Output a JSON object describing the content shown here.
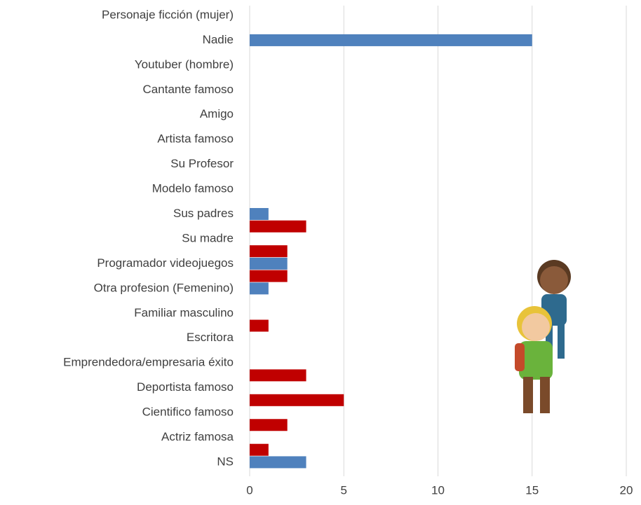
{
  "chart_data": {
    "type": "bar",
    "orientation": "horizontal",
    "categories": [
      "Personaje ficción (mujer)",
      "Nadie",
      "Youtuber (hombre)",
      "Cantante famoso",
      "Amigo ",
      "Artista famoso",
      "Su Profesor",
      "Modelo famoso",
      "Sus padres",
      "Su madre",
      "Programador videojuegos",
      "Otra profesion (Femenino)",
      "Familiar masculino",
      "Escritora",
      "Emprendedora/empresaria éxito",
      "Deportista famoso",
      "Cientifico famoso",
      "Actriz famosa",
      "NS"
    ],
    "series": [
      {
        "color": "#4f81bd",
        "values": [
          0,
          15,
          0,
          0,
          0,
          0,
          0,
          0,
          1,
          0,
          2,
          1,
          0,
          0,
          0,
          0,
          0,
          0,
          3
        ]
      },
      {
        "color": "#c00000",
        "values": [
          0,
          0,
          0,
          0,
          0,
          0,
          0,
          0,
          3,
          2,
          2,
          0,
          1,
          0,
          3,
          5,
          2,
          1,
          0
        ]
      }
    ],
    "xlim": [
      0,
      20
    ],
    "xticks": [
      0,
      5,
      10,
      15,
      20
    ],
    "grid": true
  }
}
